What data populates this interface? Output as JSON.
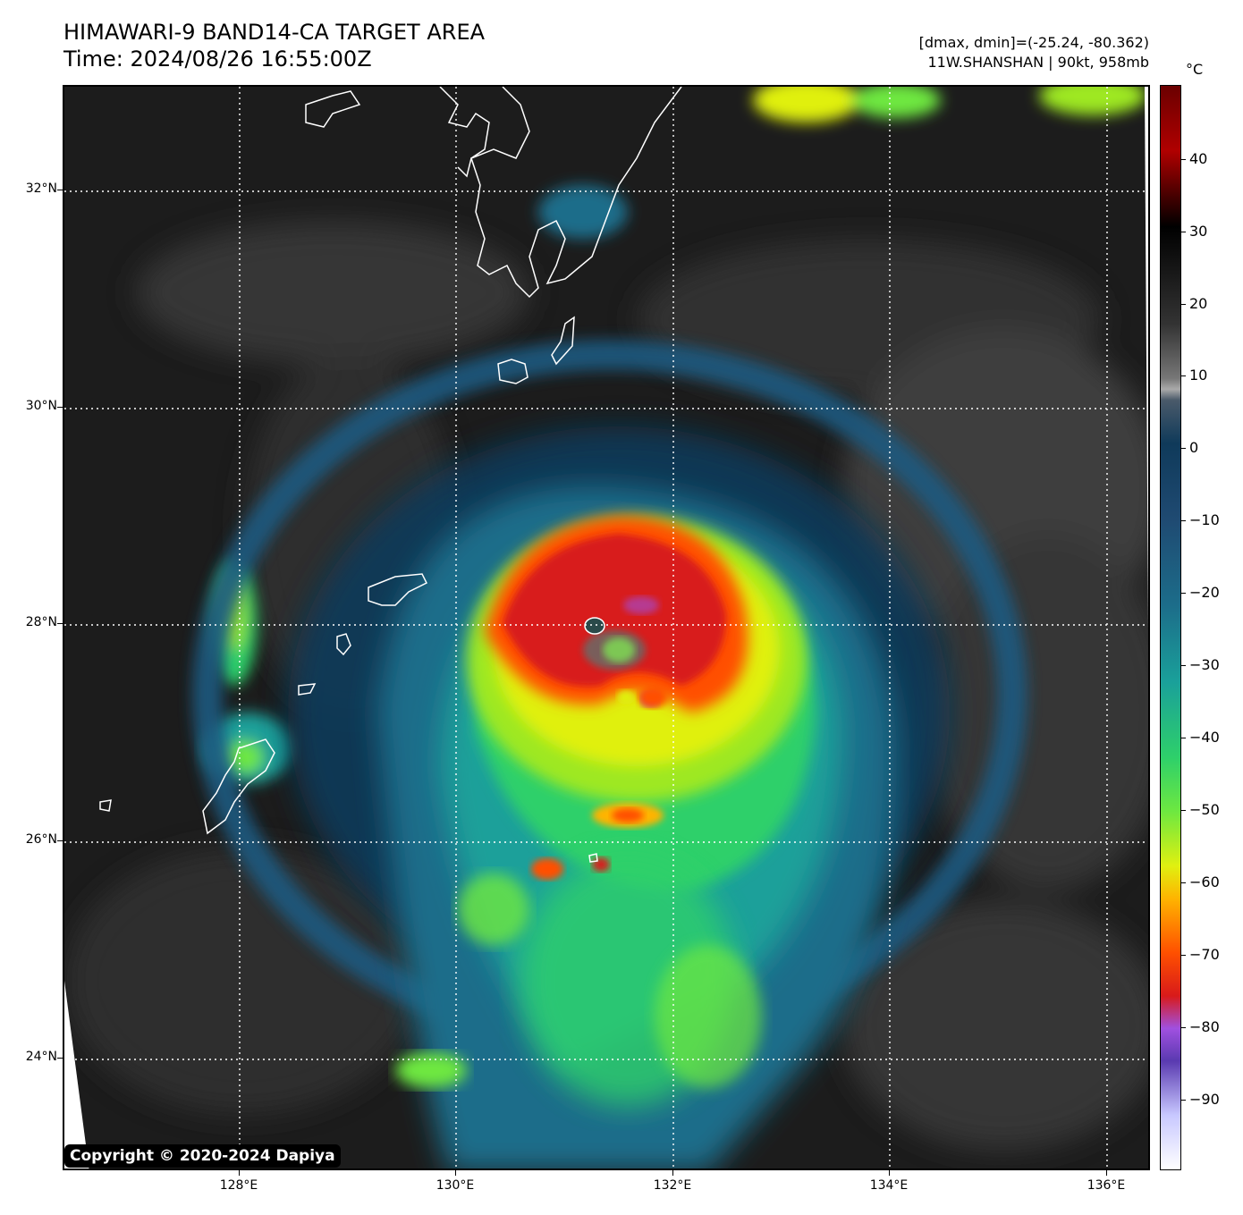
{
  "header": {
    "title": "HIMAWARI-9 BAND14-CA TARGET AREA",
    "time": "Time: 2024/08/26 16:55:00Z",
    "dminmax": "[dmax, dmin]=(-25.24, -80.362)",
    "storm": "11W.SHANSHAN | 90kt, 958mb"
  },
  "axes": {
    "lat_labels": [
      "32°N",
      "30°N",
      "28°N",
      "26°N",
      "24°N"
    ],
    "lon_labels": [
      "128°E",
      "130°E",
      "132°E",
      "134°E",
      "136°E"
    ],
    "lat_values": [
      32,
      30,
      28,
      26,
      24
    ],
    "lon_values": [
      128,
      130,
      132,
      134,
      136
    ],
    "lat_range": [
      22.9,
      32.9
    ],
    "lon_range": [
      126.4,
      136.4
    ],
    "grid": "dotted white"
  },
  "colorbar": {
    "unit": "°C",
    "tick_values": [
      40,
      30,
      20,
      10,
      0,
      -10,
      -20,
      -30,
      -40,
      -50,
      -60,
      -70,
      -80,
      -90
    ],
    "tick_labels": [
      "40",
      "30",
      "20",
      "10",
      "0",
      "−10",
      "−20",
      "−30",
      "−40",
      "−50",
      "−60",
      "−70",
      "−80",
      "−90"
    ],
    "range": [
      -100,
      50
    ]
  },
  "copyright": "Copyright © 2020-2024 Dapiya"
}
